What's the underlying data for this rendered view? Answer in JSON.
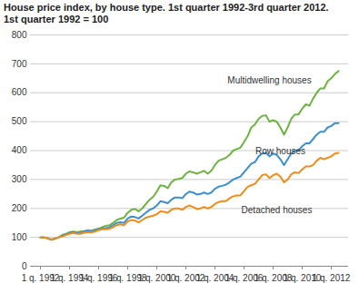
{
  "chart_data": {
    "type": "line",
    "title": "House price index, by house type. 1st quarter 1992-3rd quarter 2012.",
    "subtitle": "1st quarter 1992 = 100",
    "categories": [
      "1 q. 1992",
      null,
      null,
      null,
      null,
      null,
      null,
      null,
      "1 q. 1994",
      null,
      null,
      null,
      null,
      null,
      null,
      null,
      "1 q. 1996",
      null,
      null,
      null,
      null,
      null,
      null,
      null,
      "1 q. 1998",
      null,
      null,
      null,
      null,
      null,
      null,
      null,
      "1 q. 2000",
      null,
      null,
      null,
      null,
      null,
      null,
      null,
      "1 q. 2002",
      null,
      null,
      null,
      null,
      null,
      null,
      null,
      "1 q. 2004",
      null,
      null,
      null,
      null,
      null,
      null,
      null,
      "1 q. 2006",
      null,
      null,
      null,
      null,
      null,
      null,
      null,
      "1 q. 2008",
      null,
      null,
      null,
      null,
      null,
      null,
      null,
      "1 q. 2010",
      null,
      null,
      null,
      null,
      null,
      null,
      null,
      "1 q. 2012",
      null,
      null
    ],
    "series": [
      {
        "name": "Multidwelling houses",
        "color": "#6db33f",
        "values": [
          100,
          100,
          97,
          92,
          95,
          100,
          108,
          112,
          118,
          120,
          118,
          120,
          122,
          125,
          123,
          127,
          130,
          135,
          140,
          142,
          150,
          160,
          165,
          168,
          185,
          195,
          198,
          190,
          200,
          215,
          230,
          240,
          258,
          280,
          278,
          270,
          290,
          300,
          302,
          305,
          320,
          328,
          325,
          320,
          325,
          330,
          320,
          330,
          350,
          365,
          370,
          375,
          385,
          400,
          405,
          410,
          430,
          450,
          480,
          490,
          510,
          520,
          522,
          500,
          505,
          500,
          480,
          455,
          480,
          510,
          525,
          525,
          545,
          560,
          555,
          580,
          600,
          615,
          615,
          640,
          650,
          665,
          675
        ]
      },
      {
        "name": "Row houses",
        "color": "#3a8fd0",
        "values": [
          100,
          100,
          96,
          92,
          96,
          100,
          105,
          110,
          115,
          118,
          115,
          115,
          120,
          122,
          120,
          123,
          128,
          130,
          132,
          135,
          142,
          150,
          152,
          150,
          165,
          172,
          170,
          165,
          175,
          185,
          195,
          200,
          210,
          225,
          222,
          218,
          230,
          238,
          238,
          235,
          250,
          258,
          255,
          248,
          250,
          255,
          250,
          255,
          268,
          275,
          278,
          282,
          290,
          300,
          305,
          310,
          325,
          340,
          355,
          360,
          380,
          390,
          392,
          380,
          390,
          385,
          370,
          350,
          370,
          390,
          400,
          400,
          415,
          425,
          425,
          440,
          455,
          465,
          465,
          480,
          485,
          495,
          495
        ]
      },
      {
        "name": "Detached houses",
        "color": "#f08c1a",
        "values": [
          100,
          100,
          97,
          92,
          96,
          100,
          103,
          108,
          112,
          115,
          112,
          112,
          116,
          118,
          117,
          120,
          125,
          128,
          128,
          130,
          135,
          142,
          145,
          142,
          155,
          160,
          158,
          152,
          160,
          168,
          172,
          175,
          180,
          190,
          188,
          185,
          195,
          200,
          200,
          195,
          205,
          210,
          205,
          198,
          200,
          205,
          200,
          205,
          215,
          222,
          225,
          225,
          235,
          242,
          245,
          245,
          260,
          275,
          280,
          285,
          300,
          315,
          318,
          305,
          315,
          320,
          310,
          290,
          300,
          318,
          325,
          322,
          335,
          345,
          345,
          350,
          365,
          375,
          370,
          375,
          380,
          390,
          392
        ]
      }
    ],
    "ylim": [
      0,
      800
    ],
    "yticks": [
      0,
      100,
      200,
      300,
      400,
      500,
      600,
      700,
      800
    ],
    "grid": true
  }
}
